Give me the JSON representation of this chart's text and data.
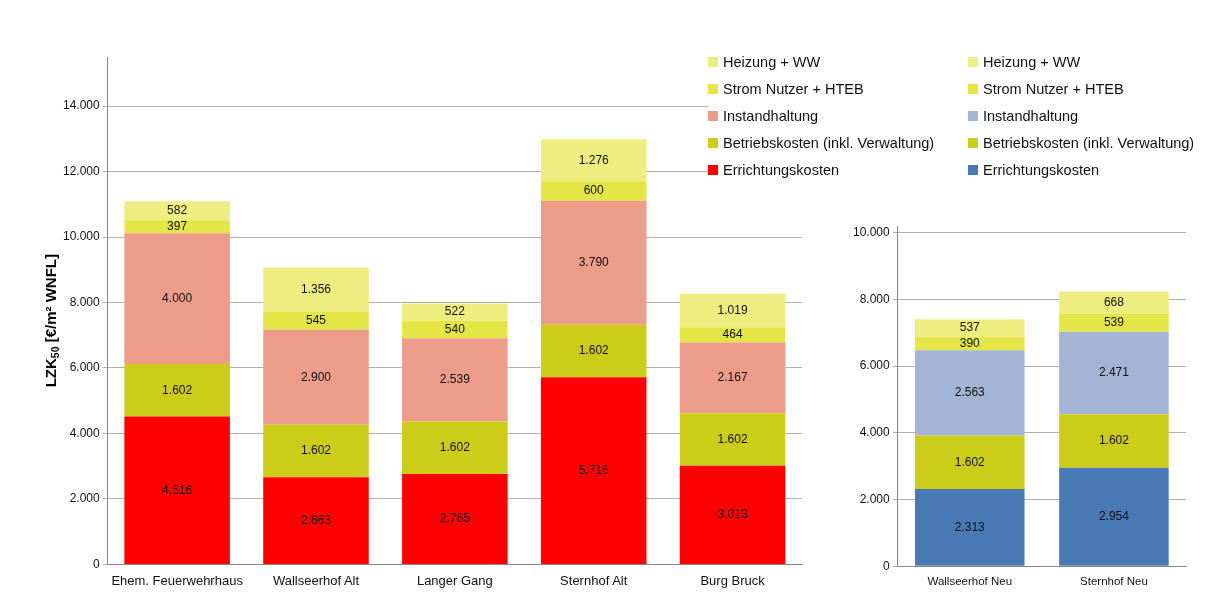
{
  "chart_data": [
    {
      "type": "bar",
      "stacked": true,
      "ylabel": "LZK$_{50}$ [€/m² WNFL]",
      "categories": [
        "Ehem. Feuerwehrhaus",
        "Wallseerhof Alt",
        "Langer Gang",
        "Sternhof Alt",
        "Burg Bruck"
      ],
      "ylim": [
        0,
        15500
      ],
      "yticks": [
        {
          "value": 0,
          "label": "0"
        },
        {
          "value": 2000,
          "label": "2.000"
        },
        {
          "value": 4000,
          "label": "4.000"
        },
        {
          "value": 6000,
          "label": "6.000"
        },
        {
          "value": 8000,
          "label": "8.000"
        },
        {
          "value": 10000,
          "label": "10.000"
        },
        {
          "value": 12000,
          "label": "12.000"
        },
        {
          "value": 14000,
          "label": "14.000"
        }
      ],
      "grid": "y",
      "legend": "top right",
      "series": [
        {
          "name": "Errichtungskosten",
          "color": "#ff0000",
          "values": [
            4516,
            2663,
            2765,
            5716,
            3013
          ],
          "value_labels": [
            "4.516",
            "2.663",
            "2.765",
            "5.716",
            "3.013"
          ]
        },
        {
          "name": "Betriebskosten (inkl. Verwaltung)",
          "color": "#cbcd19",
          "values": [
            1602,
            1602,
            1602,
            1602,
            1602
          ],
          "value_labels": [
            "1.602",
            "1.602",
            "1.602",
            "1.602",
            "1.602"
          ]
        },
        {
          "name": "Instandhaltung",
          "color": "#ec9c88",
          "values": [
            4000,
            2900,
            2539,
            3790,
            2167
          ],
          "value_labels": [
            "4.000",
            "2.900",
            "2.539",
            "3.790",
            "2.167"
          ]
        },
        {
          "name": "Strom Nutzer + HTEB",
          "color": "#e3e645",
          "values": [
            397,
            545,
            540,
            600,
            464
          ],
          "value_labels": [
            "397",
            "545",
            "540",
            "600",
            "464"
          ]
        },
        {
          "name": "Heizung + WW",
          "color": "#eeee80",
          "values": [
            582,
            1356,
            522,
            1276,
            1019
          ],
          "value_labels": [
            "582",
            "1.356",
            "522",
            "1.276",
            "1.019"
          ]
        }
      ]
    },
    {
      "type": "bar",
      "stacked": true,
      "categories": [
        "Wallseerhof Neu",
        "Sternhof Neu"
      ],
      "ylim": [
        0,
        10200
      ],
      "yticks": [
        {
          "value": 0,
          "label": "0"
        },
        {
          "value": 2000,
          "label": "2.000"
        },
        {
          "value": 4000,
          "label": "4.000"
        },
        {
          "value": 6000,
          "label": "6.000"
        },
        {
          "value": 8000,
          "label": "8.000"
        },
        {
          "value": 10000,
          "label": "10.000"
        }
      ],
      "grid": "y",
      "legend": "top right",
      "series": [
        {
          "name": "Errichtungskosten",
          "color": "#4a7ab5",
          "values": [
            2313,
            2954
          ],
          "value_labels": [
            "2.313",
            "2.954"
          ]
        },
        {
          "name": "Betriebskosten (inkl. Verwaltung)",
          "color": "#cbcd19",
          "values": [
            1602,
            1602
          ],
          "value_labels": [
            "1.602",
            "1.602"
          ]
        },
        {
          "name": "Instandhaltung",
          "color": "#a3b4d4",
          "values": [
            2563,
            2471
          ],
          "value_labels": [
            "2.563",
            "2.471"
          ]
        },
        {
          "name": "Strom Nutzer + HTEB",
          "color": "#e3e645",
          "values": [
            390,
            539
          ],
          "value_labels": [
            "390",
            "539"
          ]
        },
        {
          "name": "Heizung + WW",
          "color": "#eeee80",
          "values": [
            537,
            668
          ],
          "value_labels": [
            "537",
            "668"
          ]
        }
      ]
    }
  ]
}
